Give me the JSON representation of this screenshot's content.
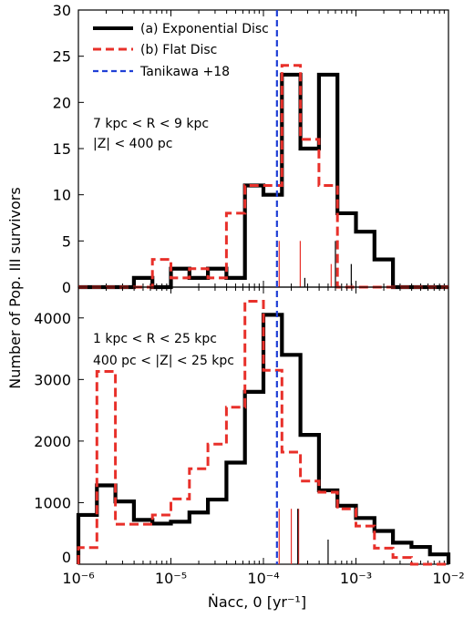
{
  "chart_data": [
    {
      "type": "histogram",
      "panel": "top",
      "x_scale": "log",
      "xlim": [
        1e-06,
        0.01
      ],
      "ylim": [
        0,
        30
      ],
      "yticks": [
        0,
        5,
        10,
        15,
        20,
        25,
        30
      ],
      "bin_edges_log10": [
        -6.0,
        -5.8,
        -5.6,
        -5.4,
        -5.2,
        -5.0,
        -4.8,
        -4.6,
        -4.4,
        -4.2,
        -4.0,
        -3.8,
        -3.6,
        -3.4,
        -3.2,
        -3.0,
        -2.8,
        -2.6,
        -2.4,
        -2.2,
        -2.0
      ],
      "series": [
        {
          "name": "(a) Exponential Disc",
          "color": "#000000",
          "style": "solid",
          "values": [
            0,
            0,
            0,
            1,
            0,
            2,
            1,
            2,
            1,
            11,
            10,
            23,
            15,
            23,
            8,
            6,
            3,
            0,
            0,
            0
          ]
        },
        {
          "name": "(b) Flat Disc",
          "color": "#e8302a",
          "style": "dashed",
          "values": [
            0,
            0,
            0,
            0,
            3,
            1,
            2,
            1,
            8,
            11,
            11,
            24,
            16,
            11,
            0,
            0,
            0,
            0,
            0,
            0
          ]
        }
      ],
      "markers": [
        {
          "x": 0.000148,
          "height": 5,
          "color": "#e8302a"
        },
        {
          "x": 0.00025,
          "height": 5,
          "color": "#e8302a"
        },
        {
          "x": 0.00054,
          "height": 2.5,
          "color": "#e8302a"
        },
        {
          "x": 0.00028,
          "height": 1,
          "color": "#000000"
        },
        {
          "x": 0.0006,
          "height": 5,
          "color": "#000000"
        },
        {
          "x": 0.00089,
          "height": 2.5,
          "color": "#000000"
        }
      ],
      "annotations": [
        "7 kpc < R < 9 kpc",
        "|Z| < 400 pc"
      ]
    },
    {
      "type": "histogram",
      "panel": "bottom",
      "x_scale": "log",
      "xlim": [
        1e-06,
        0.01
      ],
      "ylim": [
        0,
        4500
      ],
      "yticks": [
        0,
        1000,
        2000,
        3000,
        4000
      ],
      "bin_edges_log10": [
        -6.0,
        -5.8,
        -5.6,
        -5.4,
        -5.2,
        -5.0,
        -4.8,
        -4.6,
        -4.4,
        -4.2,
        -4.0,
        -3.8,
        -3.6,
        -3.4,
        -3.2,
        -3.0,
        -2.8,
        -2.6,
        -2.4,
        -2.2,
        -2.0
      ],
      "series": [
        {
          "name": "(a) Exponential Disc",
          "color": "#000000",
          "style": "solid",
          "values": [
            800,
            1280,
            1020,
            720,
            660,
            690,
            840,
            1050,
            1650,
            2800,
            4050,
            3400,
            2100,
            1200,
            950,
            750,
            540,
            350,
            280,
            160
          ]
        },
        {
          "name": "(b) Flat Disc",
          "color": "#e8302a",
          "style": "dashed",
          "values": [
            270,
            3130,
            650,
            650,
            800,
            1060,
            1550,
            1950,
            2550,
            4270,
            3150,
            1820,
            1350,
            1170,
            900,
            620,
            260,
            110,
            0,
            0
          ]
        }
      ],
      "markers": [
        {
          "x": 0.000148,
          "height": 900,
          "color": "#e8302a"
        },
        {
          "x": 0.00024,
          "height": 900,
          "color": "#e8302a"
        },
        {
          "x": 0.0002,
          "height": 900,
          "color": "#e8302a"
        },
        {
          "x": 0.000235,
          "height": 900,
          "color": "#000000"
        },
        {
          "x": 0.0005,
          "height": 400,
          "color": "#000000"
        }
      ],
      "annotations": [
        "1 kpc < R < 25 kpc",
        "400 pc < |Z| < 25 kpc"
      ]
    }
  ],
  "reference_line": {
    "name": "Tanikawa +18",
    "x": 0.00014,
    "color": "#1f3fd6"
  },
  "legend": [
    {
      "label": "(a) Exponential Disc",
      "color": "#000000",
      "style": "solid"
    },
    {
      "label": "(b) Flat Disc",
      "color": "#e8302a",
      "style": "dashed"
    },
    {
      "label": "Tanikawa +18",
      "color": "#1f3fd6",
      "style": "dashed"
    }
  ],
  "ylabel": "Number of Pop. III survivors",
  "xlabel": "Ṅacc, 0 [yr⁻¹]",
  "xticks": [
    "10⁻⁶",
    "10⁻⁵",
    "10⁻⁴",
    "10⁻³",
    "10⁻²"
  ]
}
